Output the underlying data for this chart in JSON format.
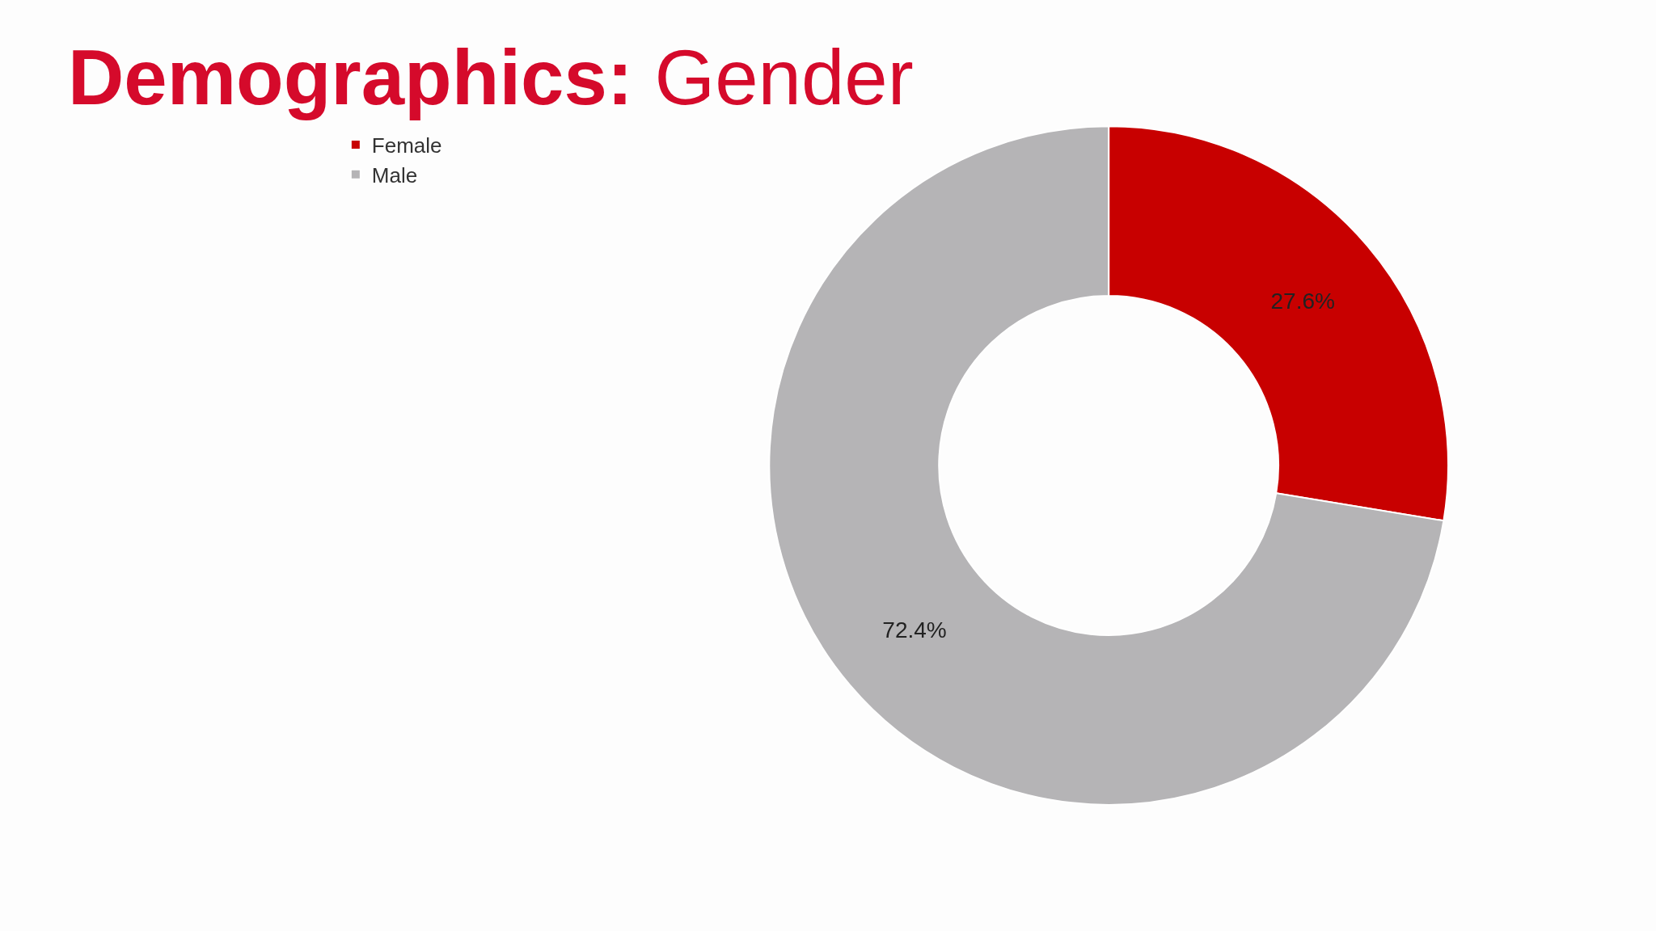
{
  "chart_data": {
    "type": "donut",
    "title": "Demographics: Gender",
    "categories": [
      "Female",
      "Male"
    ],
    "values": [
      27.6,
      72.4
    ],
    "colors": [
      "#c80000",
      "#b5b4b6"
    ],
    "value_labels": [
      "27.6%",
      "72.4%"
    ],
    "legend": "top left"
  }
}
